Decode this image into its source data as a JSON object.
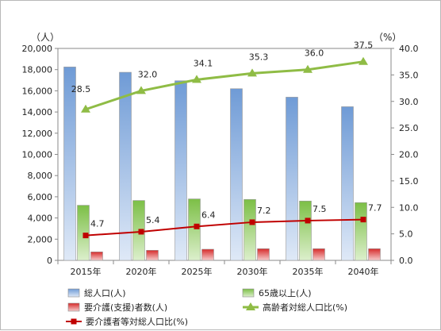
{
  "chart_data": {
    "type": "bar",
    "categories": [
      "2015年",
      "2020年",
      "2025年",
      "2030年",
      "2035年",
      "2040年"
    ],
    "y_left": {
      "unit": "（人）",
      "min": 0,
      "max": 20000,
      "step": 2000,
      "ticks": [
        "0",
        "2,000",
        "4,000",
        "6,000",
        "8,000",
        "10,000",
        "12,000",
        "14,000",
        "16,000",
        "18,000",
        "20,000"
      ]
    },
    "y_right": {
      "unit": "（%）",
      "min": 0,
      "max": 40,
      "step": 5,
      "ticks": [
        "0.0",
        "5.0",
        "10.0",
        "15.0",
        "20.0",
        "25.0",
        "30.0",
        "35.0",
        "40.0"
      ]
    },
    "bar_series": [
      {
        "name": "総人口(人)",
        "values": [
          18250,
          17750,
          16950,
          16200,
          15400,
          14500
        ],
        "color": "#8db3e2"
      },
      {
        "name": "65歳以上(人)",
        "values": [
          5200,
          5650,
          5800,
          5750,
          5600,
          5450
        ],
        "color": "#8ccb5c"
      },
      {
        "name": "要介護(支援)者数(人)",
        "values": [
          800,
          950,
          1050,
          1100,
          1100,
          1100
        ],
        "color": "#e34b4b"
      }
    ],
    "line_series": [
      {
        "name": "高齢者対総人口比(%)",
        "values": [
          28.5,
          32.0,
          34.1,
          35.3,
          36.0,
          37.5
        ],
        "labels": [
          "28.5",
          "32.0",
          "34.1",
          "35.3",
          "36.0",
          "37.5"
        ],
        "color": "#8fbc45",
        "marker": "triangle"
      },
      {
        "name": "要介護者等対総人口比(%)",
        "values": [
          4.7,
          5.4,
          6.4,
          7.2,
          7.5,
          7.7
        ],
        "labels": [
          "4.7",
          "5.4",
          "6.4",
          "7.2",
          "7.5",
          "7.7"
        ],
        "color": "#c00000",
        "marker": "square"
      }
    ],
    "legend": "bottom",
    "grid": false
  }
}
